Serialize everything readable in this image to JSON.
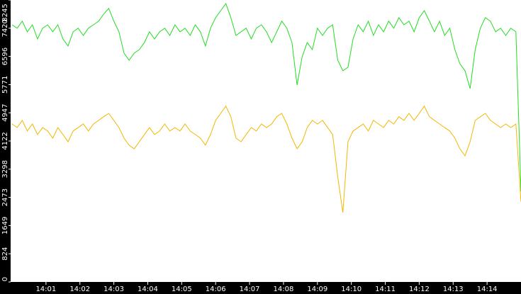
{
  "chart_data": {
    "type": "line",
    "x": [
      0,
      0.15,
      0.3,
      0.45,
      0.6,
      0.75,
      0.9,
      1.05,
      1.2,
      1.35,
      1.5,
      1.65,
      1.8,
      1.95,
      2.1,
      2.25,
      2.4,
      2.55,
      2.7,
      2.85,
      3,
      3.15,
      3.3,
      3.45,
      3.6,
      3.75,
      3.9,
      4.05,
      4.2,
      4.35,
      4.5,
      4.65,
      4.8,
      4.95,
      5.1,
      5.25,
      5.4,
      5.55,
      5.7,
      5.85,
      6,
      6.15,
      6.3,
      6.45,
      6.6,
      6.75,
      6.9,
      7.05,
      7.2,
      7.35,
      7.5,
      7.65,
      7.8,
      7.95,
      8.1,
      8.25,
      8.4,
      8.55,
      8.7,
      8.85,
      9,
      9.15,
      9.3,
      9.45,
      9.6,
      9.75,
      9.9,
      10.05,
      10.2,
      10.35,
      10.5,
      10.65,
      10.8,
      10.95,
      11.1,
      11.25,
      11.4,
      11.55,
      11.7,
      11.85,
      12,
      12.15,
      12.3,
      12.45,
      12.6,
      12.75,
      12.9,
      13.05,
      13.2,
      13.35,
      13.5,
      13.65,
      13.8,
      13.95,
      14.1,
      14.25,
      14.4,
      14.55,
      14.7,
      14.85,
      15
    ],
    "series": [
      {
        "color": "#22dd22",
        "values": [
          7520,
          7420,
          7625,
          7315,
          7520,
          7105,
          7420,
          7520,
          7315,
          7520,
          7105,
          6900,
          7315,
          7420,
          7210,
          7420,
          7520,
          7625,
          7830,
          8000,
          7625,
          7315,
          6690,
          6485,
          6690,
          6795,
          7000,
          7315,
          7105,
          7315,
          7420,
          7210,
          7520,
          7315,
          7420,
          7210,
          7520,
          7315,
          6900,
          7420,
          7730,
          7935,
          8140,
          7730,
          7210,
          7315,
          7420,
          7105,
          7420,
          7520,
          7315,
          7000,
          7315,
          7625,
          7420,
          7000,
          5760,
          6590,
          7000,
          6795,
          7420,
          7210,
          7420,
          7520,
          6485,
          6175,
          6280,
          7105,
          7520,
          7315,
          7625,
          7210,
          7520,
          7315,
          7625,
          7420,
          7730,
          7520,
          7625,
          7315,
          7730,
          7935,
          7625,
          7315,
          7625,
          7210,
          7420,
          6795,
          6380,
          6175,
          5655,
          6795,
          7420,
          7730,
          7625,
          7315,
          7420,
          7210,
          7420,
          7315,
          2650
        ]
      },
      {
        "color": "#f2b800",
        "values": [
          4620,
          4515,
          4725,
          4415,
          4620,
          4310,
          4515,
          4415,
          4205,
          4515,
          4310,
          4100,
          4415,
          4515,
          4620,
          4415,
          4620,
          4725,
          4830,
          4930,
          4725,
          4515,
          4205,
          4000,
          3895,
          4100,
          4310,
          4515,
          4310,
          4415,
          4620,
          4415,
          4515,
          4415,
          4620,
          4415,
          4310,
          4205,
          4000,
          4310,
          4725,
          4930,
          5140,
          4830,
          4205,
          4100,
          4310,
          4515,
          4415,
          4620,
          4515,
          4620,
          4830,
          4930,
          4620,
          4205,
          3895,
          4100,
          4515,
          4725,
          4620,
          4725,
          4515,
          4310,
          3065,
          2030,
          4100,
          4415,
          4515,
          4620,
          4415,
          4725,
          4620,
          4515,
          4725,
          4620,
          4830,
          4725,
          4930,
          4725,
          4930,
          5140,
          4830,
          4725,
          4620,
          4515,
          4415,
          4205,
          3895,
          3690,
          4100,
          4725,
          4830,
          4930,
          4725,
          4620,
          4515,
          4620,
          4515,
          4620,
          2340
        ]
      }
    ],
    "xlim": [
      0,
      15
    ],
    "xticks": [
      {
        "value": 1,
        "label": "14:01"
      },
      {
        "value": 2,
        "label": "14:02"
      },
      {
        "value": 3,
        "label": "14:03"
      },
      {
        "value": 4,
        "label": "14:04"
      },
      {
        "value": 5,
        "label": "14:05"
      },
      {
        "value": 6,
        "label": "14:06"
      },
      {
        "value": 7,
        "label": "14:07"
      },
      {
        "value": 8,
        "label": "14:08"
      },
      {
        "value": 9,
        "label": "14:09"
      },
      {
        "value": 10,
        "label": "14:10"
      },
      {
        "value": 11,
        "label": "14:11"
      },
      {
        "value": 12,
        "label": "14:12"
      },
      {
        "value": 13,
        "label": "14:13"
      },
      {
        "value": 14,
        "label": "14:14"
      }
    ],
    "ylim": [
      0,
      8245
    ],
    "yticks": [
      0,
      824,
      1649,
      2473,
      3298,
      4122,
      4947,
      5771,
      6596,
      7420,
      8245
    ],
    "grid": false
  }
}
